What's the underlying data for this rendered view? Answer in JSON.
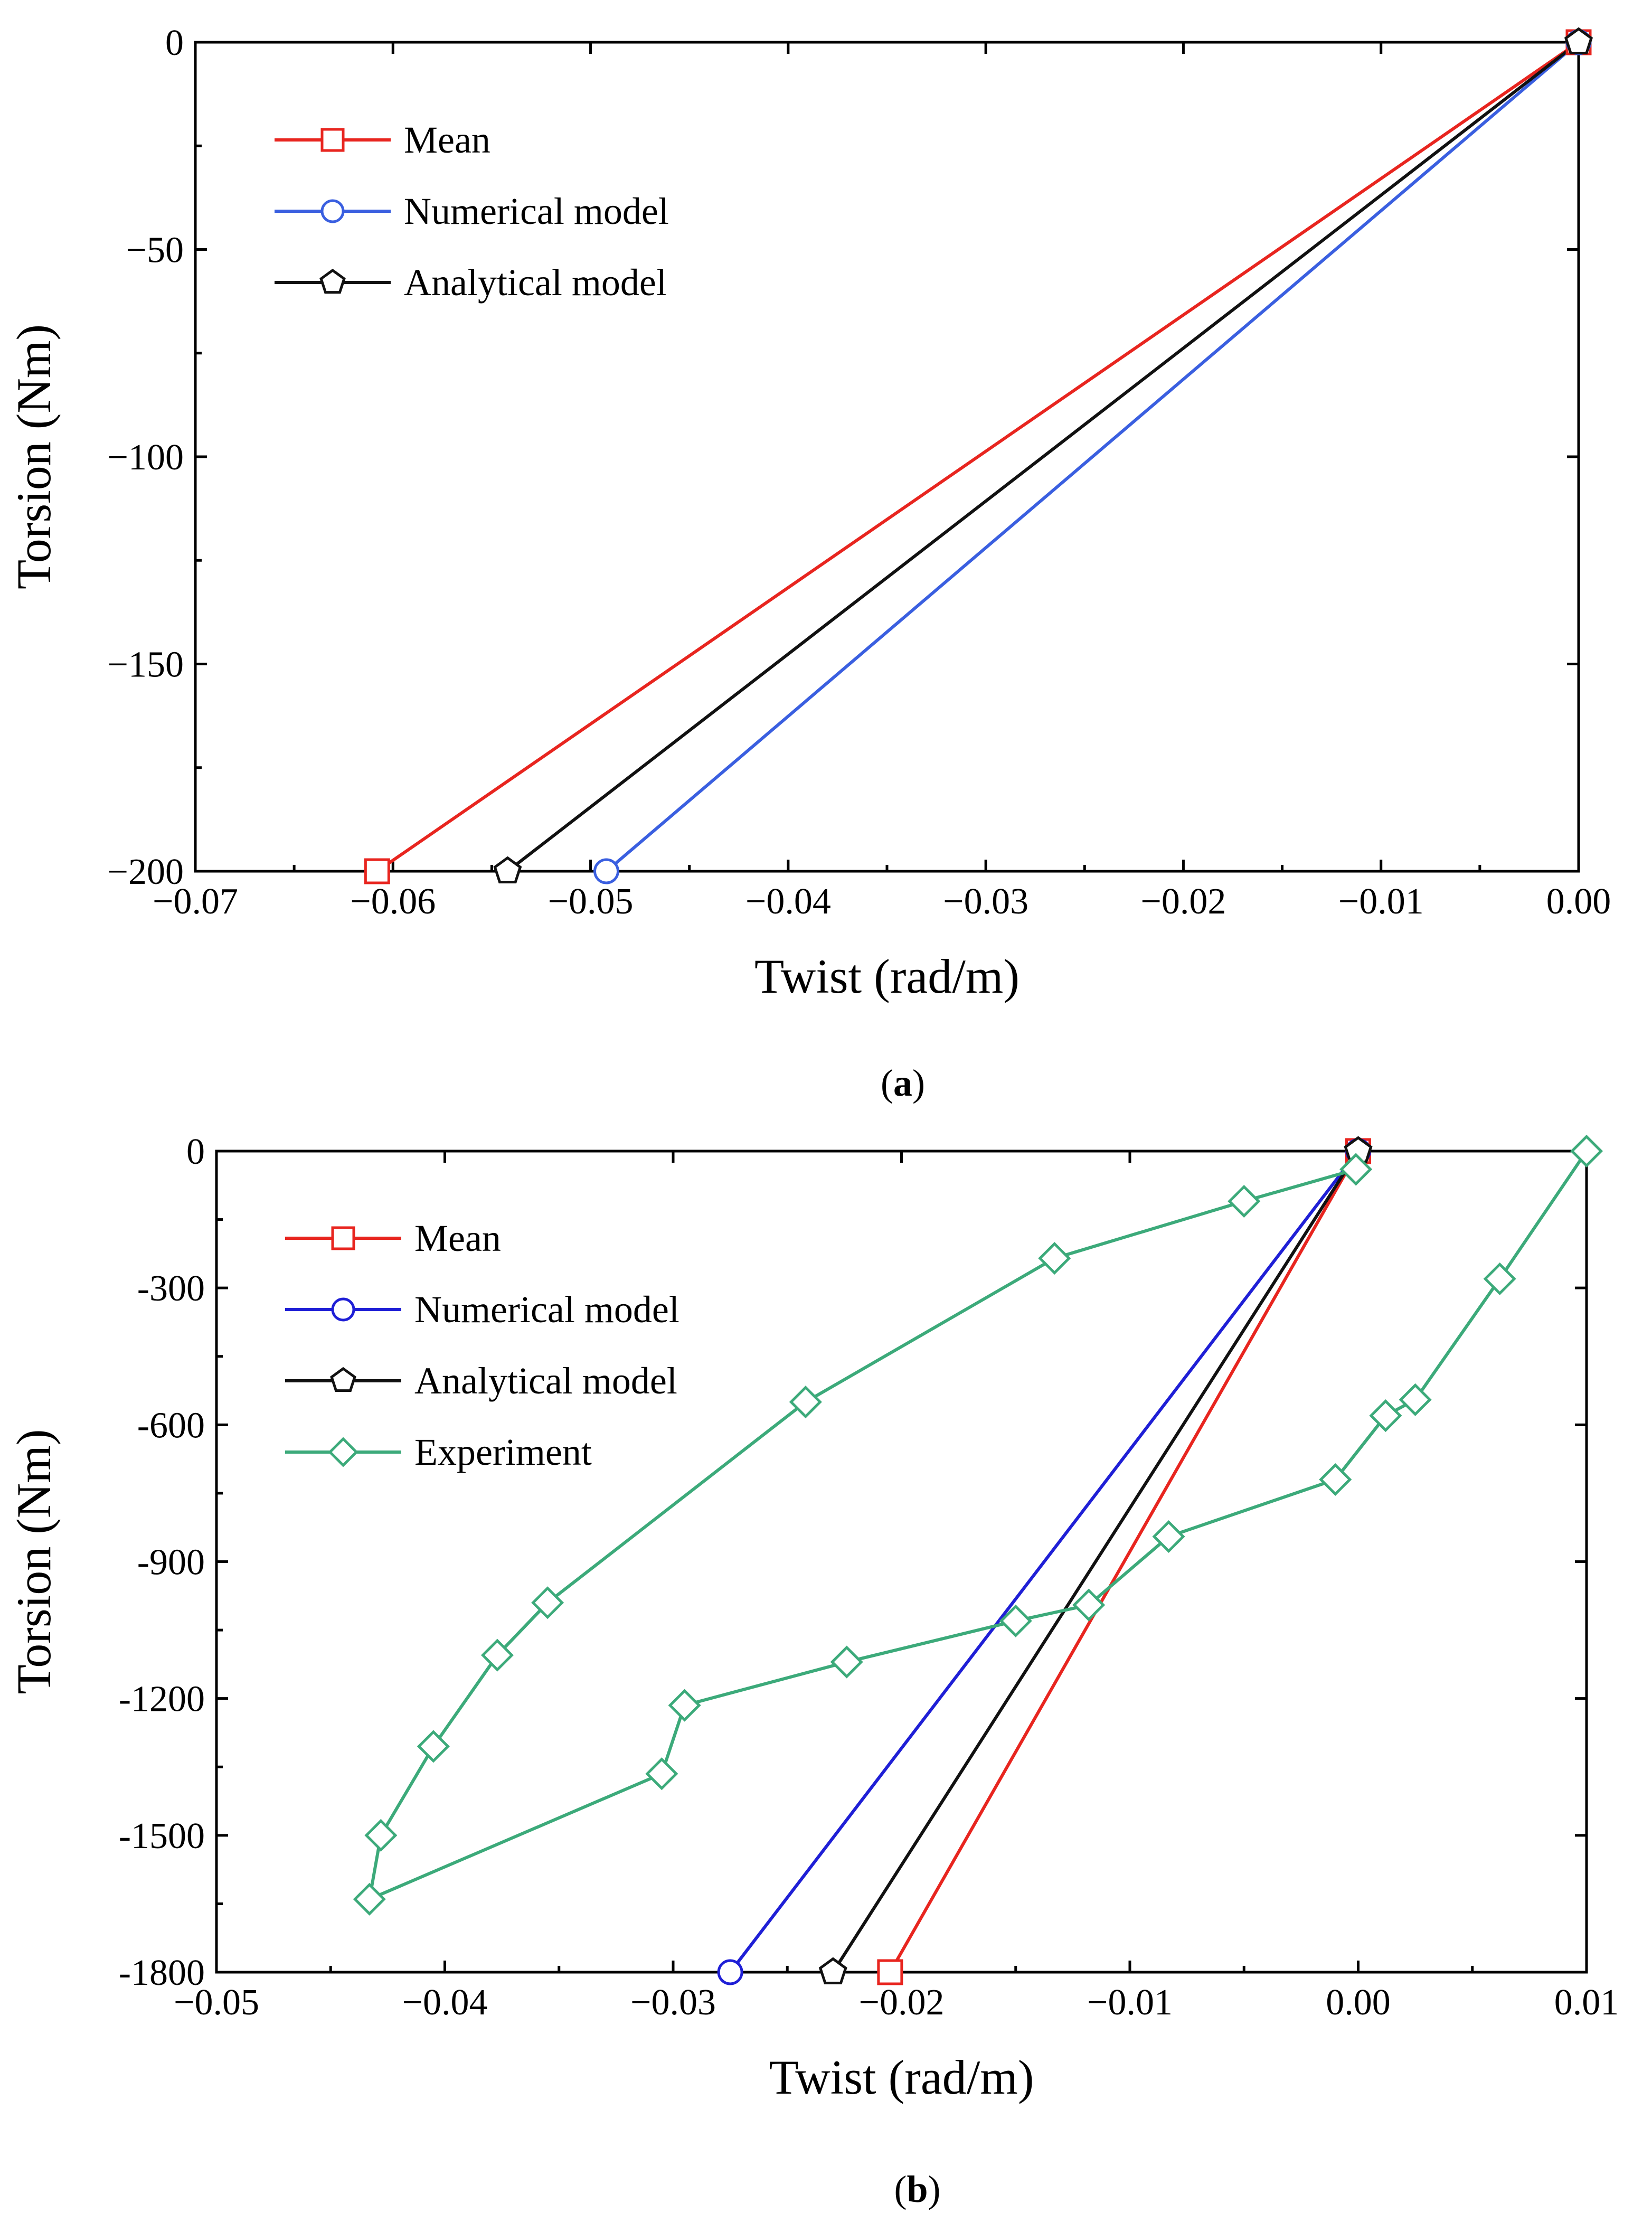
{
  "chart_data": [
    {
      "type": "line",
      "panel_label": "a",
      "xlabel": "Twist (rad/m)",
      "ylabel": "Torsion (Nm)",
      "xlim": [
        -0.07,
        0.0
      ],
      "ylim": [
        -200,
        0
      ],
      "xticks": [
        -0.07,
        -0.06,
        -0.05,
        -0.04,
        -0.03,
        -0.02,
        -0.01,
        0.0
      ],
      "xtick_labels": [
        "−0.07",
        "−0.06",
        "−0.05",
        "−0.04",
        "−0.03",
        "−0.02",
        "−0.01",
        "0.00"
      ],
      "yticks": [
        0,
        -50,
        -100,
        -150,
        -200
      ],
      "ytick_labels": [
        "0",
        "−50",
        "−100",
        "−150",
        "−200"
      ],
      "legend_position": "top-left",
      "series": [
        {
          "name": "Mean",
          "color": "#e8251f",
          "marker": "square",
          "x": [
            0.0,
            -0.0608
          ],
          "y": [
            0,
            -200
          ]
        },
        {
          "name": "Numerical model",
          "color": "#3a5fe0",
          "marker": "circle",
          "x": [
            0.0,
            -0.0492
          ],
          "y": [
            0,
            -200
          ]
        },
        {
          "name": "Analytical model",
          "color": "#111111",
          "marker": "pentagon",
          "x": [
            0.0,
            -0.0542
          ],
          "y": [
            0,
            -200
          ]
        }
      ]
    },
    {
      "type": "line",
      "panel_label": "b",
      "xlabel": "Twist (rad/m)",
      "ylabel": "Torsion (Nm)",
      "xlim": [
        -0.05,
        0.01
      ],
      "ylim": [
        -1800,
        0
      ],
      "xticks": [
        -0.05,
        -0.04,
        -0.03,
        -0.02,
        -0.01,
        0.0,
        0.01
      ],
      "xtick_labels": [
        "−0.05",
        "−0.04",
        "−0.03",
        "−0.02",
        "−0.01",
        "0.00",
        "0.01"
      ],
      "yticks": [
        0,
        -300,
        -600,
        -900,
        -1200,
        -1500,
        -1800
      ],
      "ytick_labels": [
        "0",
        "-300",
        "-600",
        "-900",
        "-1200",
        "-1500",
        "-1800"
      ],
      "legend_position": "top-left",
      "series": [
        {
          "name": "Mean",
          "color": "#e8251f",
          "marker": "square",
          "x": [
            0.0,
            -0.0205
          ],
          "y": [
            0,
            -1800
          ]
        },
        {
          "name": "Numerical model",
          "color": "#1f1fd6",
          "marker": "circle",
          "x": [
            0.0,
            -0.0275
          ],
          "y": [
            0,
            -1800
          ]
        },
        {
          "name": "Analytical model",
          "color": "#111111",
          "marker": "pentagon",
          "x": [
            0.0,
            -0.023
          ],
          "y": [
            0,
            -1800
          ]
        },
        {
          "name": "Experiment",
          "color": "#3caa7a",
          "marker": "diamond",
          "x": [
            0.01,
            0.0062,
            0.0025,
            0.0012,
            -0.001,
            -0.0083,
            -0.0118,
            -0.015,
            -0.0224,
            -0.0295,
            -0.0305,
            -0.0433,
            -0.0428,
            -0.0405,
            -0.0377,
            -0.0355,
            -0.0242,
            -0.0133,
            -0.005,
            -0.0001
          ],
          "y": [
            0,
            -280,
            -545,
            -580,
            -720,
            -845,
            -995,
            -1030,
            -1120,
            -1215,
            -1365,
            -1640,
            -1500,
            -1305,
            -1105,
            -990,
            -550,
            -235,
            -110,
            -40
          ]
        }
      ]
    }
  ]
}
